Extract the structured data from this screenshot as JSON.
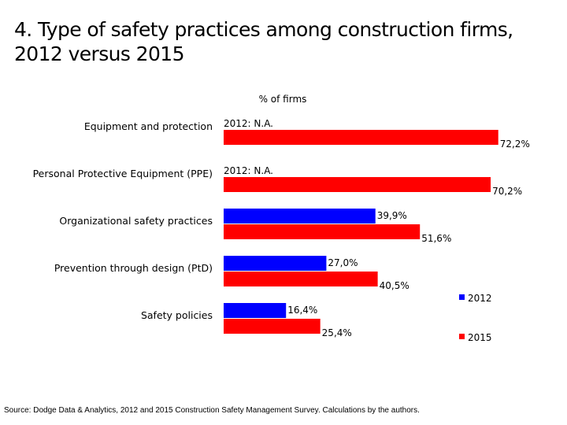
{
  "title": "4. Type of safety practices among construction firms, 2012 versus 2015",
  "source": "Source: Dodge Data & Analytics, 2012 and 2015 Construction Safety Management Survey. Calculations by the authors.",
  "chart_data": {
    "type": "bar",
    "orientation": "horizontal",
    "xlabel": "% of firms",
    "ylabel": "",
    "xlim": [
      0,
      75
    ],
    "grid": false,
    "legend_position": "bottom-right",
    "categories": [
      "Equipment and protection",
      "Personal Protective Equipment (PPE)",
      "Organizational safety practices",
      "Prevention through design (PtD)",
      "Safety policies"
    ],
    "series": [
      {
        "name": "2012",
        "color": "#0000ff",
        "values": [
          null,
          null,
          39.9,
          27.0,
          16.4
        ],
        "labels": [
          "2012: N.A.",
          "2012: N.A.",
          "39,9%",
          "27,0%",
          "16,4%"
        ]
      },
      {
        "name": "2015",
        "color": "#ff0000",
        "values": [
          72.2,
          70.2,
          51.6,
          40.5,
          25.4
        ],
        "labels": [
          "72,2%",
          "70,2%",
          "51,6%",
          "40,5%",
          "25,4%"
        ]
      }
    ]
  }
}
